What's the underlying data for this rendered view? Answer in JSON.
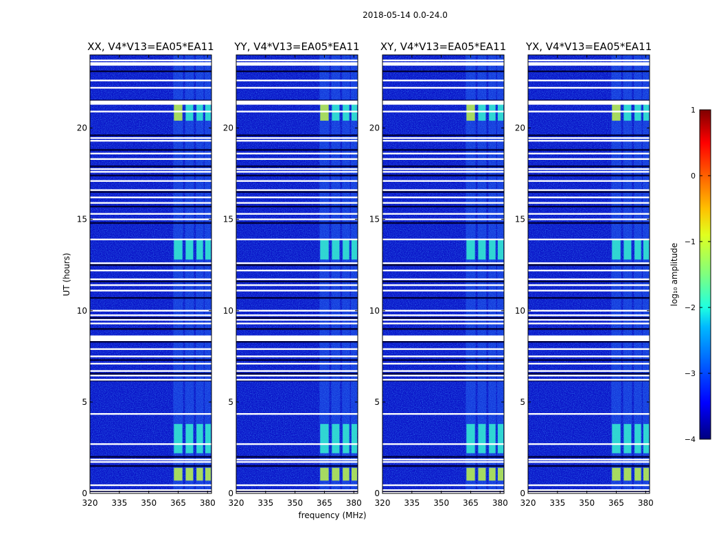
{
  "chart_data": {
    "type": "heatmap",
    "title": "2018-05-14 0.0-24.0",
    "xlabel": "frequency (MHz)",
    "ylabel": "UT (hours)",
    "xlim": [
      320,
      382
    ],
    "ylim": [
      0,
      24
    ],
    "xticks": [
      320,
      335,
      350,
      365,
      380
    ],
    "yticks": [
      0,
      5,
      10,
      15,
      20
    ],
    "panels": [
      {
        "title": "XX, V4*V13=EA05*EA11"
      },
      {
        "title": "YY, V4*V13=EA05*EA11"
      },
      {
        "title": "XY, V4*V13=EA05*EA11"
      },
      {
        "title": "YX, V4*V13=EA05*EA11"
      }
    ],
    "colorbar": {
      "label": "log₁₀ amplitude",
      "range": [
        -4,
        1
      ],
      "ticks": [
        "1",
        "0",
        "−1",
        "−2",
        "−3",
        "−4"
      ],
      "colormap": [
        "#00007f",
        "#0000ff",
        "#007fff",
        "#00ffff",
        "#7fff7f",
        "#ffff00",
        "#ff7f00",
        "#ff0000",
        "#7f0000"
      ]
    },
    "bright_bands_MHz": [
      [
        362.5,
        367.5
      ],
      [
        368.5,
        373
      ],
      [
        374,
        378
      ],
      [
        378.5,
        382
      ]
    ],
    "bright_time_ranges_h": [
      [
        0.7,
        1.4
      ],
      [
        2.2,
        3.8
      ],
      [
        12.8,
        13.9
      ],
      [
        20.4,
        21.5
      ]
    ],
    "flagged_rows_h": [
      0.05,
      0.12,
      0.18,
      0.45,
      1.5,
      1.72,
      1.85,
      2.0,
      2.7,
      4.35,
      6.18,
      6.22,
      6.45,
      6.55,
      6.7,
      7.1,
      7.3,
      7.5,
      7.9,
      8.3,
      8.45,
      8.6,
      9.0,
      9.3,
      9.5,
      9.6,
      9.75,
      10.0,
      10.7,
      11.1,
      11.4,
      11.6,
      11.72,
      12.2,
      12.5,
      12.6,
      13.9,
      14.8,
      15.0,
      15.3,
      15.7,
      15.9,
      16.2,
      16.5,
      16.6,
      17.1,
      17.4,
      17.6,
      17.75,
      17.9,
      18.3,
      18.6,
      18.8,
      19.3,
      19.45,
      19.6,
      20.9,
      21.4,
      21.5,
      22.2,
      22.6,
      23.1,
      23.7
    ]
  }
}
